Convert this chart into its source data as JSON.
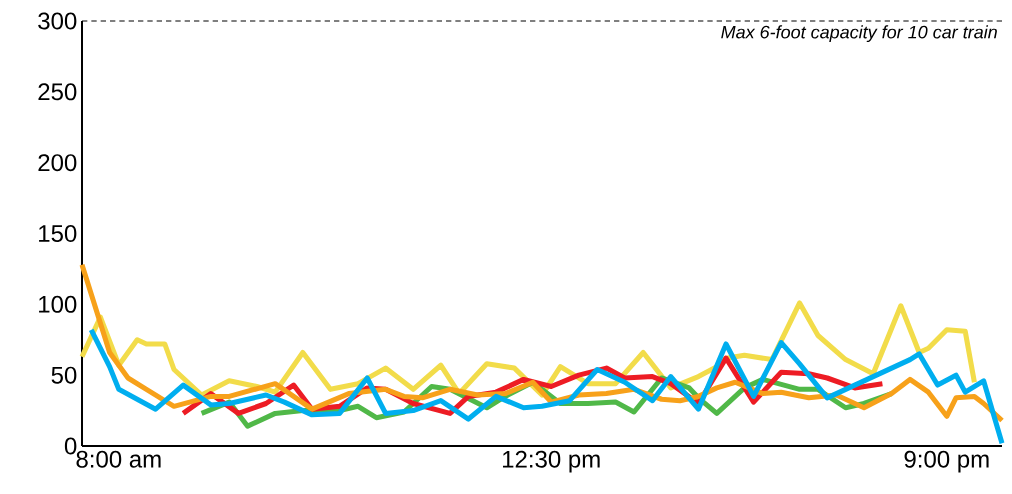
{
  "chart_data": {
    "type": "line",
    "ylim": [
      0,
      300
    ],
    "categories": [
      null,
      null,
      null,
      null,
      "8:00 am",
      null,
      null,
      null,
      null,
      null,
      null,
      null,
      null,
      null,
      null,
      null,
      null,
      null,
      null,
      null,
      null,
      null,
      null,
      null,
      null,
      null,
      null,
      null,
      null,
      null,
      null,
      null,
      null,
      null,
      null,
      null,
      null,
      null,
      null,
      null,
      null,
      null,
      null,
      null,
      null,
      null,
      null,
      null,
      null,
      null,
      null,
      "12:30 pm",
      null,
      null,
      null,
      null,
      null,
      null,
      null,
      null,
      null,
      null,
      null,
      null,
      null,
      null,
      null,
      null,
      null,
      null,
      null,
      null,
      null,
      null,
      null,
      null,
      null,
      null,
      null,
      null,
      null,
      null,
      null,
      null,
      null,
      null,
      null,
      null,
      null,
      null,
      null,
      null,
      null,
      null,
      "9:00 pm",
      null,
      null,
      null,
      null,
      null,
      null
    ],
    "yticks": [
      0,
      50,
      100,
      150,
      200,
      250,
      300
    ],
    "marker": "none",
    "line_style": "solid",
    "ref_lines": [
      {
        "axis": "y",
        "value": 300,
        "label": "Max 6-foot capacity for 10 car train",
        "color": "#000000",
        "line_style": "dashed"
      }
    ],
    "series": [
      {
        "color": "#f2dc4a",
        "values": [
          63,
          null,
          91,
          null,
          57,
          null,
          75,
          72,
          null,
          72,
          54,
          null,
          null,
          36,
          null,
          null,
          46,
          null,
          null,
          42,
          null,
          38,
          null,
          null,
          66,
          null,
          null,
          40,
          null,
          null,
          44,
          null,
          null,
          55,
          null,
          null,
          40,
          null,
          null,
          57,
          null,
          37,
          null,
          null,
          58,
          null,
          null,
          55,
          null,
          null,
          36,
          null,
          56,
          null,
          null,
          44,
          null,
          null,
          44,
          null,
          null,
          66,
          null,
          null,
          41,
          null,
          null,
          49,
          null,
          56,
          62,
          null,
          64,
          null,
          null,
          61,
          null,
          null,
          101,
          null,
          78,
          null,
          null,
          61,
          null,
          null,
          51,
          null,
          null,
          99,
          null,
          66,
          69,
          null,
          82,
          null,
          81,
          45,
          null,
          null,
          null
        ]
      },
      {
        "color": "#50b848",
        "values": [
          null,
          null,
          null,
          null,
          null,
          null,
          null,
          null,
          null,
          null,
          null,
          null,
          null,
          23,
          null,
          null,
          31,
          null,
          14,
          null,
          null,
          23,
          null,
          null,
          25,
          null,
          null,
          null,
          25,
          null,
          28,
          null,
          20,
          null,
          null,
          24,
          null,
          null,
          42,
          null,
          40,
          null,
          null,
          null,
          27,
          null,
          35,
          null,
          null,
          45,
          null,
          null,
          30,
          null,
          null,
          30,
          null,
          null,
          31,
          null,
          24,
          null,
          null,
          48,
          null,
          null,
          41,
          34,
          null,
          23,
          null,
          null,
          41,
          null,
          47,
          null,
          null,
          null,
          40,
          null,
          40,
          null,
          null,
          27,
          null,
          30,
          null,
          null,
          37,
          null,
          null,
          null,
          null,
          null,
          null,
          null,
          null,
          null,
          null,
          null,
          null
        ]
      },
      {
        "color": "#ed1c24",
        "values": [
          null,
          null,
          null,
          null,
          null,
          null,
          null,
          null,
          null,
          null,
          null,
          23,
          null,
          null,
          37,
          null,
          null,
          23,
          null,
          null,
          30,
          null,
          null,
          43,
          null,
          26,
          null,
          null,
          28,
          null,
          null,
          41,
          null,
          40,
          null,
          null,
          30,
          null,
          null,
          null,
          23,
          null,
          35,
          null,
          null,
          38,
          null,
          null,
          47,
          null,
          null,
          42,
          null,
          null,
          50,
          null,
          null,
          55,
          null,
          48,
          null,
          null,
          49,
          null,
          44,
          null,
          null,
          30,
          null,
          null,
          62,
          null,
          null,
          31,
          null,
          null,
          52,
          null,
          null,
          51,
          null,
          48,
          null,
          null,
          41,
          null,
          null,
          44,
          null,
          null,
          null,
          null,
          null,
          null,
          null,
          null,
          null,
          null,
          null,
          null,
          null
        ]
      },
      {
        "color": "#f7a11a",
        "values": [
          128,
          null,
          null,
          66,
          null,
          48,
          null,
          40,
          null,
          null,
          28,
          null,
          null,
          null,
          35,
          null,
          35,
          null,
          null,
          null,
          null,
          44,
          null,
          null,
          null,
          26,
          null,
          null,
          null,
          37,
          null,
          null,
          null,
          40,
          null,
          35,
          null,
          34,
          null,
          null,
          40,
          null,
          null,
          36,
          null,
          null,
          37,
          null,
          null,
          45,
          null,
          31,
          null,
          null,
          36,
          null,
          null,
          37,
          null,
          null,
          40,
          null,
          null,
          33,
          null,
          32,
          null,
          35,
          null,
          41,
          null,
          45,
          null,
          null,
          37,
          null,
          38,
          null,
          null,
          34,
          null,
          null,
          36,
          null,
          null,
          27,
          null,
          null,
          37,
          null,
          47,
          null,
          38,
          null,
          21,
          34,
          null,
          35,
          30,
          null,
          18
        ]
      },
      {
        "color": "#00aeef",
        "values": [
          null,
          82,
          null,
          56,
          40,
          null,
          null,
          null,
          26,
          null,
          null,
          43,
          null,
          null,
          29,
          null,
          30,
          null,
          null,
          null,
          36,
          null,
          31,
          null,
          null,
          22,
          null,
          null,
          23,
          null,
          null,
          48,
          null,
          23,
          null,
          null,
          25,
          null,
          null,
          32,
          null,
          null,
          19,
          null,
          null,
          35,
          null,
          null,
          27,
          null,
          28,
          null,
          null,
          32,
          null,
          null,
          54,
          null,
          null,
          45,
          null,
          null,
          32,
          null,
          49,
          null,
          null,
          26,
          null,
          null,
          72,
          null,
          null,
          35,
          null,
          null,
          73,
          null,
          58,
          null,
          null,
          34,
          null,
          null,
          43,
          null,
          null,
          52,
          null,
          null,
          61,
          65,
          null,
          43,
          null,
          50,
          38,
          null,
          46,
          null,
          2
        ]
      }
    ]
  }
}
